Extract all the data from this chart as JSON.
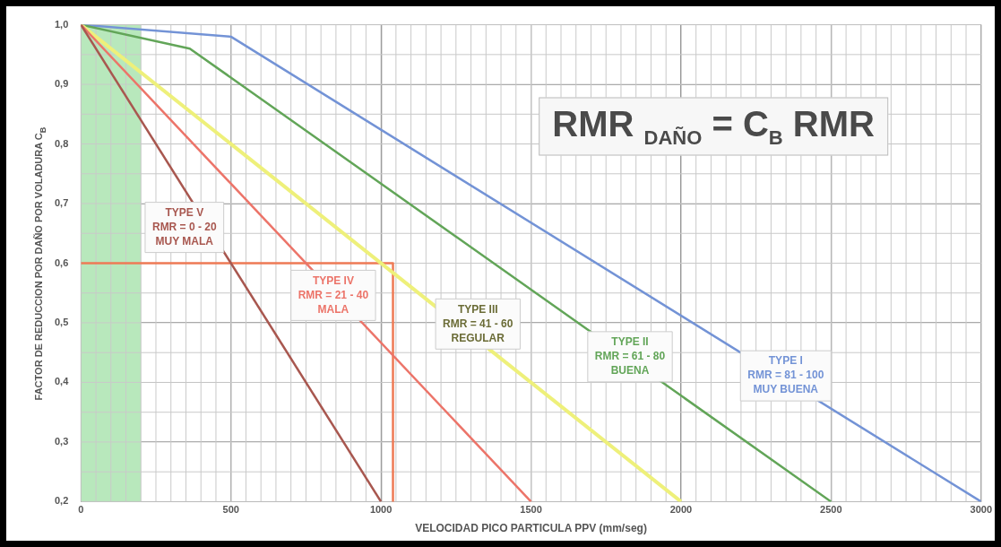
{
  "chart_data": {
    "type": "line",
    "xlabel": "VELOCIDAD PICO PARTICULA PPV (mm/seg)",
    "ylabel": "FACTOR DE REDUCCION POR DAÑO POR VOLADURA C$_{B}$",
    "annotations": [
      "RMR $_{DAÑO}$ = C$_{B}$ RMR"
    ],
    "xlim": [
      0,
      3000
    ],
    "xticks": [
      0,
      500,
      1000,
      1500,
      2000,
      2500,
      3000
    ],
    "ylim": [
      0.2,
      1.0
    ],
    "yticks": [
      {
        "value": 0.2,
        "label": "0,2"
      },
      {
        "value": 0.3,
        "label": "0,3"
      },
      {
        "value": 0.4,
        "label": "0,4"
      },
      {
        "value": 0.5,
        "label": "0,5"
      },
      {
        "value": 0.6,
        "label": "0,6"
      },
      {
        "value": 0.7,
        "label": "0,7"
      },
      {
        "value": 0.8,
        "label": "0,8"
      },
      {
        "value": 0.9,
        "label": "0,9"
      },
      {
        "value": 1.0,
        "label": "1,0"
      }
    ],
    "grid": true,
    "legend": false,
    "bands": [
      {
        "axis": "x",
        "from": 0,
        "to": 200,
        "color": "#b8e8bc"
      }
    ],
    "series": [
      {
        "name": "TYPE V\nRMR = 0 - 20\nMUY MALA",
        "color": "#a8574f",
        "x": [
          0,
          1000
        ],
        "values": [
          1.0,
          0.2
        ]
      },
      {
        "name": "TYPE IV\nRMR = 21 - 40\nMALA",
        "color": "#ec7469",
        "x": [
          0,
          1500
        ],
        "values": [
          1.0,
          0.2
        ]
      },
      {
        "name": "TYPE III\nRMR = 41 - 60\nREGULAR",
        "color": "#eef07a",
        "x": [
          0,
          2000
        ],
        "values": [
          1.0,
          0.2
        ]
      },
      {
        "name": "TYPE II\nRMR = 61 - 80\nBUENA",
        "color": "#62a558",
        "x": [
          0,
          363,
          2500
        ],
        "values": [
          1.0,
          0.96,
          0.2
        ]
      },
      {
        "name": "TYPE I\nRMR = 81 - 100\nMUY BUENA",
        "color": "#7393d6",
        "x": [
          0,
          500,
          3000
        ],
        "values": [
          1.0,
          0.98,
          0.2
        ]
      },
      {
        "color": "#ee7a55",
        "x": [
          0,
          1040,
          1040
        ],
        "values": [
          0.6,
          0.6,
          0.2
        ]
      }
    ]
  }
}
